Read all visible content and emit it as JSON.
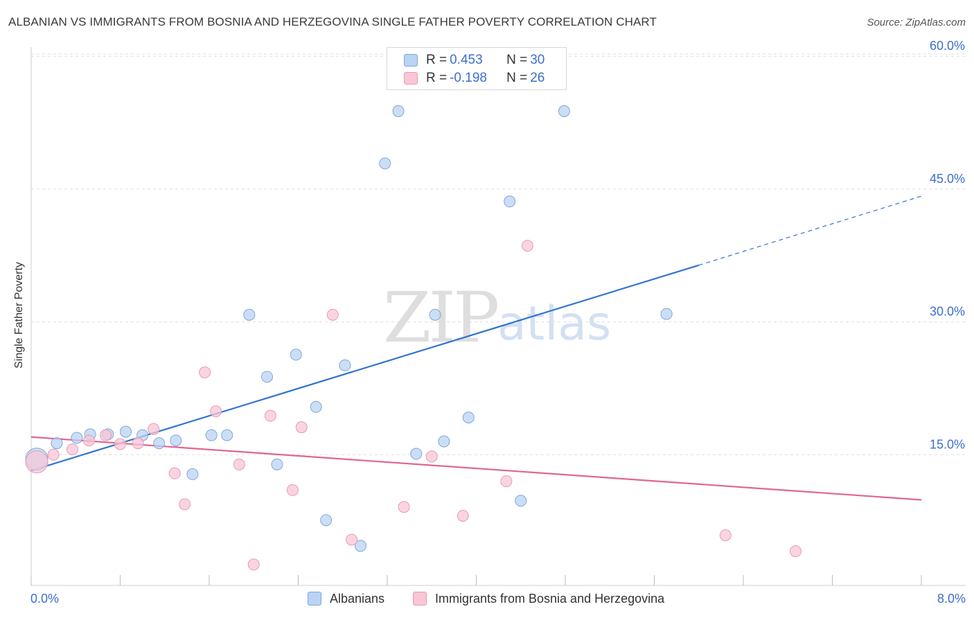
{
  "title": "ALBANIAN VS IMMIGRANTS FROM BOSNIA AND HERZEGOVINA SINGLE FATHER POVERTY CORRELATION CHART",
  "source": "Source: ZipAtlas.com",
  "watermark": {
    "zip": "ZIP",
    "atlas": "atlas"
  },
  "legend": {
    "rows": [
      {
        "r_label": "R = ",
        "r_value": "0.453",
        "n_label": "N = ",
        "n_value": "30"
      },
      {
        "r_label": "R = ",
        "r_value": "-0.198",
        "n_label": "N = ",
        "n_value": "26"
      }
    ]
  },
  "colors": {
    "albanian_fill": "#b9d3f3",
    "albanian_stroke": "#7ea6dc",
    "albanian_line": "#2f74d0",
    "bosnia_fill": "#f8c6d5",
    "bosnia_stroke": "#e89ab4",
    "bosnia_line": "#e0668f",
    "axis_label": "#3b6fcf",
    "grid": "#dddddd"
  },
  "chart_data": {
    "type": "scatter",
    "title": "ALBANIAN VS IMMIGRANTS FROM BOSNIA AND HERZEGOVINA SINGLE FATHER POVERTY CORRELATION CHART",
    "xlabel": "",
    "ylabel": "Single Father Poverty",
    "xlim": [
      0,
      8
    ],
    "ylim": [
      0,
      60
    ],
    "x_tick_labels": [
      "0.0%",
      "8.0%"
    ],
    "y_ticks": [
      15,
      30,
      45,
      60
    ],
    "y_tick_labels": [
      "15.0%",
      "30.0%",
      "45.0%",
      "60.0%"
    ],
    "grid": true,
    "legend_position": "top-center",
    "series": [
      {
        "name": "Albanians",
        "R": 0.453,
        "N": 30,
        "points": [
          {
            "x": 0.05,
            "y": 14.5,
            "big": true
          },
          {
            "x": 0.23,
            "y": 16.3
          },
          {
            "x": 0.41,
            "y": 16.9
          },
          {
            "x": 0.53,
            "y": 17.3
          },
          {
            "x": 0.69,
            "y": 17.3
          },
          {
            "x": 0.85,
            "y": 17.6
          },
          {
            "x": 1.0,
            "y": 17.2
          },
          {
            "x": 1.15,
            "y": 16.3
          },
          {
            "x": 1.3,
            "y": 16.6
          },
          {
            "x": 1.45,
            "y": 12.8
          },
          {
            "x": 1.62,
            "y": 17.2
          },
          {
            "x": 1.76,
            "y": 17.2
          },
          {
            "x": 1.96,
            "y": 30.8
          },
          {
            "x": 2.12,
            "y": 23.8
          },
          {
            "x": 2.21,
            "y": 13.9
          },
          {
            "x": 2.38,
            "y": 26.3
          },
          {
            "x": 2.56,
            "y": 20.4
          },
          {
            "x": 2.65,
            "y": 7.6
          },
          {
            "x": 2.82,
            "y": 25.1
          },
          {
            "x": 2.96,
            "y": 4.7
          },
          {
            "x": 3.18,
            "y": 47.9
          },
          {
            "x": 3.3,
            "y": 53.8
          },
          {
            "x": 3.46,
            "y": 15.1
          },
          {
            "x": 3.63,
            "y": 30.8
          },
          {
            "x": 3.71,
            "y": 16.5
          },
          {
            "x": 3.93,
            "y": 19.2
          },
          {
            "x": 4.3,
            "y": 43.6
          },
          {
            "x": 4.4,
            "y": 9.8
          },
          {
            "x": 4.79,
            "y": 53.8
          },
          {
            "x": 5.71,
            "y": 30.9
          }
        ],
        "trend": {
          "x0": 0.0,
          "y0": 13.2,
          "x1": 6.0,
          "y1": 36.4,
          "dash_to_x": 8.0,
          "dash_to_y": 44.2
        }
      },
      {
        "name": "Immigrants from Bosnia and Herzegovina",
        "R": -0.198,
        "N": 26,
        "points": [
          {
            "x": 0.05,
            "y": 14.2,
            "big": true
          },
          {
            "x": 0.2,
            "y": 15.0
          },
          {
            "x": 0.37,
            "y": 15.6
          },
          {
            "x": 0.52,
            "y": 16.6
          },
          {
            "x": 0.67,
            "y": 17.2
          },
          {
            "x": 0.8,
            "y": 16.2
          },
          {
            "x": 0.96,
            "y": 16.3
          },
          {
            "x": 1.1,
            "y": 17.9
          },
          {
            "x": 1.29,
            "y": 12.9
          },
          {
            "x": 1.38,
            "y": 9.4
          },
          {
            "x": 1.56,
            "y": 24.3
          },
          {
            "x": 1.66,
            "y": 19.9
          },
          {
            "x": 1.87,
            "y": 13.9
          },
          {
            "x": 2.0,
            "y": 2.6
          },
          {
            "x": 2.15,
            "y": 19.4
          },
          {
            "x": 2.35,
            "y": 11.0
          },
          {
            "x": 2.43,
            "y": 18.1
          },
          {
            "x": 2.71,
            "y": 30.8
          },
          {
            "x": 2.88,
            "y": 5.4
          },
          {
            "x": 3.35,
            "y": 9.1
          },
          {
            "x": 3.6,
            "y": 14.8
          },
          {
            "x": 3.88,
            "y": 8.1
          },
          {
            "x": 4.27,
            "y": 12.0
          },
          {
            "x": 4.46,
            "y": 38.6
          },
          {
            "x": 6.24,
            "y": 5.9
          },
          {
            "x": 6.87,
            "y": 4.1
          }
        ],
        "trend": {
          "x0": 0.0,
          "y0": 17.0,
          "x1": 8.0,
          "y1": 9.9
        }
      }
    ]
  }
}
